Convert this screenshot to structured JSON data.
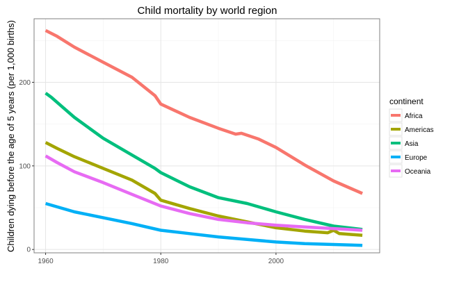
{
  "chart_data": {
    "type": "line",
    "title": "Child mortality by world region",
    "xlabel": "",
    "ylabel": "Children dying before the age of 5 years (per 1,000 births)",
    "xlim": [
      1958,
      2018
    ],
    "ylim": [
      -4,
      276
    ],
    "x_ticks": [
      1960,
      1980,
      2000
    ],
    "y_ticks": [
      0,
      100,
      200
    ],
    "grid": true,
    "legend": {
      "title": "continent",
      "position": "right"
    },
    "series": [
      {
        "name": "Africa",
        "color": "#F8766D",
        "x": [
          1960,
          1962,
          1965,
          1970,
          1975,
          1979,
          1980,
          1985,
          1990,
          1993,
          1994,
          1997,
          2000,
          2005,
          2010,
          2015
        ],
        "y": [
          262,
          255,
          242,
          224,
          206,
          184,
          174,
          158,
          145,
          138,
          139,
          132,
          122,
          101,
          82,
          67
        ]
      },
      {
        "name": "Americas",
        "color": "#A3A500",
        "x": [
          1960,
          1962,
          1965,
          1970,
          1975,
          1979,
          1980,
          1985,
          1990,
          1995,
          2000,
          2005,
          2009,
          2010,
          2011,
          2015
        ],
        "y": [
          128,
          121,
          111,
          97,
          83,
          67,
          59,
          49,
          40,
          33,
          26,
          22,
          20,
          23,
          19,
          17
        ]
      },
      {
        "name": "Asia",
        "color": "#00BF7D",
        "x": [
          1960,
          1961,
          1963,
          1965,
          1970,
          1975,
          1979,
          1980,
          1985,
          1990,
          1995,
          2000,
          2005,
          2010,
          2015
        ],
        "y": [
          187,
          182,
          170,
          158,
          133,
          113,
          97,
          92,
          75,
          62,
          55,
          45,
          36,
          28,
          24
        ]
      },
      {
        "name": "Europe",
        "color": "#00B0F6",
        "x": [
          1960,
          1965,
          1970,
          1975,
          1980,
          1985,
          1990,
          1995,
          2000,
          2005,
          2010,
          2015
        ],
        "y": [
          55,
          45,
          38,
          31,
          23,
          19,
          15,
          12,
          9,
          7,
          6,
          5
        ]
      },
      {
        "name": "Oceania",
        "color": "#E76BF3",
        "x": [
          1960,
          1962,
          1965,
          1970,
          1975,
          1980,
          1985,
          1990,
          1995,
          2000,
          2005,
          2010,
          2015
        ],
        "y": [
          112,
          104,
          93,
          80,
          66,
          52,
          43,
          36,
          32,
          29,
          27,
          25,
          23
        ]
      }
    ]
  }
}
